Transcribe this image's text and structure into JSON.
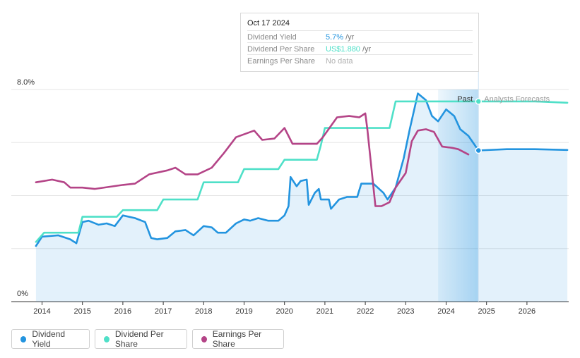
{
  "tooltip": {
    "date": "Oct 17 2024",
    "rows": [
      {
        "label": "Dividend Yield",
        "value": "5.7%",
        "unit": "/yr",
        "color": "#2394df"
      },
      {
        "label": "Dividend Per Share",
        "value": "US$1.880",
        "unit": "/yr",
        "color": "#4fe0c8"
      },
      {
        "label": "Earnings Per Share",
        "value": "No data",
        "unit": "",
        "color": "#b0b0b0"
      }
    ]
  },
  "regions": {
    "past": "Past",
    "forecast": "Analysts Forecasts"
  },
  "legend": [
    {
      "label": "Dividend Yield",
      "color": "#2394df"
    },
    {
      "label": "Dividend Per Share",
      "color": "#4fe0c8"
    },
    {
      "label": "Earnings Per Share",
      "color": "#b44487"
    }
  ],
  "chart_data": {
    "type": "line",
    "y_axis": {
      "min_label": "0%",
      "max_label": "8.0%",
      "ylim": [
        0,
        8
      ]
    },
    "x_axis": {
      "ticks": [
        "2014",
        "2015",
        "2016",
        "2017",
        "2018",
        "2019",
        "2020",
        "2021",
        "2022",
        "2023",
        "2024",
        "2025",
        "2026"
      ],
      "xlim": [
        2013.8,
        2027
      ]
    },
    "now": 2024.8,
    "highlight_start": 2023.8,
    "grid": true,
    "legend_position": "bottom-left",
    "series": [
      {
        "name": "Dividend Yield",
        "color": "#2394df",
        "area": true,
        "points": [
          [
            2013.85,
            2.1
          ],
          [
            2014.0,
            2.45
          ],
          [
            2014.4,
            2.5
          ],
          [
            2014.7,
            2.35
          ],
          [
            2014.85,
            2.2
          ],
          [
            2015.0,
            3.0
          ],
          [
            2015.15,
            3.05
          ],
          [
            2015.4,
            2.9
          ],
          [
            2015.6,
            2.95
          ],
          [
            2015.8,
            2.85
          ],
          [
            2016.0,
            3.25
          ],
          [
            2016.3,
            3.15
          ],
          [
            2016.55,
            3.0
          ],
          [
            2016.7,
            2.4
          ],
          [
            2016.85,
            2.35
          ],
          [
            2017.1,
            2.4
          ],
          [
            2017.3,
            2.65
          ],
          [
            2017.55,
            2.7
          ],
          [
            2017.75,
            2.5
          ],
          [
            2018.0,
            2.85
          ],
          [
            2018.2,
            2.8
          ],
          [
            2018.35,
            2.6
          ],
          [
            2018.55,
            2.6
          ],
          [
            2018.8,
            2.95
          ],
          [
            2019.0,
            3.1
          ],
          [
            2019.15,
            3.05
          ],
          [
            2019.35,
            3.15
          ],
          [
            2019.6,
            3.05
          ],
          [
            2019.85,
            3.05
          ],
          [
            2020.0,
            3.25
          ],
          [
            2020.1,
            3.6
          ],
          [
            2020.15,
            4.7
          ],
          [
            2020.3,
            4.35
          ],
          [
            2020.4,
            4.55
          ],
          [
            2020.55,
            4.6
          ],
          [
            2020.6,
            3.65
          ],
          [
            2020.75,
            4.1
          ],
          [
            2020.85,
            4.25
          ],
          [
            2020.9,
            3.85
          ],
          [
            2021.1,
            3.85
          ],
          [
            2021.15,
            3.5
          ],
          [
            2021.35,
            3.85
          ],
          [
            2021.55,
            3.95
          ],
          [
            2021.8,
            3.95
          ],
          [
            2021.9,
            4.45
          ],
          [
            2022.0,
            4.45
          ],
          [
            2022.2,
            4.45
          ],
          [
            2022.45,
            4.1
          ],
          [
            2022.55,
            3.85
          ],
          [
            2022.75,
            4.3
          ],
          [
            2022.95,
            5.4
          ],
          [
            2023.1,
            6.5
          ],
          [
            2023.3,
            7.85
          ],
          [
            2023.5,
            7.6
          ],
          [
            2023.65,
            7.0
          ],
          [
            2023.8,
            6.8
          ],
          [
            2024.0,
            7.25
          ],
          [
            2024.2,
            7.0
          ],
          [
            2024.35,
            6.5
          ],
          [
            2024.55,
            6.25
          ],
          [
            2024.8,
            5.7
          ],
          [
            2025.5,
            5.75
          ],
          [
            2026.2,
            5.75
          ],
          [
            2027.0,
            5.72
          ]
        ]
      },
      {
        "name": "Dividend Per Share",
        "color": "#4fe0c8",
        "area": false,
        "points": [
          [
            2013.85,
            2.25
          ],
          [
            2014.05,
            2.6
          ],
          [
            2014.9,
            2.6
          ],
          [
            2015.0,
            3.2
          ],
          [
            2015.85,
            3.2
          ],
          [
            2016.0,
            3.45
          ],
          [
            2016.85,
            3.45
          ],
          [
            2017.0,
            3.85
          ],
          [
            2017.85,
            3.85
          ],
          [
            2018.0,
            4.5
          ],
          [
            2018.85,
            4.5
          ],
          [
            2019.0,
            5.0
          ],
          [
            2019.85,
            5.0
          ],
          [
            2020.0,
            5.35
          ],
          [
            2020.8,
            5.35
          ],
          [
            2020.9,
            5.9
          ],
          [
            2021.0,
            6.55
          ],
          [
            2021.15,
            6.55
          ],
          [
            2022.6,
            6.55
          ],
          [
            2022.75,
            7.55
          ],
          [
            2023.7,
            7.55
          ],
          [
            2024.8,
            7.55
          ],
          [
            2025.5,
            7.55
          ],
          [
            2026.2,
            7.55
          ],
          [
            2027.0,
            7.5
          ]
        ]
      },
      {
        "name": "Earnings Per Share",
        "color": "#b44487",
        "area": false,
        "points": [
          [
            2013.85,
            4.5
          ],
          [
            2014.25,
            4.6
          ],
          [
            2014.55,
            4.5
          ],
          [
            2014.7,
            4.3
          ],
          [
            2015.0,
            4.3
          ],
          [
            2015.3,
            4.25
          ],
          [
            2016.0,
            4.4
          ],
          [
            2016.3,
            4.45
          ],
          [
            2016.65,
            4.8
          ],
          [
            2017.1,
            4.95
          ],
          [
            2017.3,
            5.05
          ],
          [
            2017.55,
            4.8
          ],
          [
            2017.85,
            4.8
          ],
          [
            2018.2,
            5.05
          ],
          [
            2018.5,
            5.6
          ],
          [
            2018.8,
            6.2
          ],
          [
            2019.25,
            6.45
          ],
          [
            2019.45,
            6.1
          ],
          [
            2019.75,
            6.15
          ],
          [
            2020.0,
            6.55
          ],
          [
            2020.2,
            5.95
          ],
          [
            2020.8,
            5.95
          ],
          [
            2020.95,
            6.2
          ],
          [
            2021.3,
            6.95
          ],
          [
            2021.6,
            7.0
          ],
          [
            2021.85,
            6.95
          ],
          [
            2022.0,
            7.1
          ],
          [
            2022.05,
            6.5
          ],
          [
            2022.25,
            3.6
          ],
          [
            2022.4,
            3.6
          ],
          [
            2022.6,
            3.75
          ],
          [
            2022.75,
            4.3
          ],
          [
            2023.0,
            4.85
          ],
          [
            2023.15,
            6.05
          ],
          [
            2023.3,
            6.45
          ],
          [
            2023.5,
            6.5
          ],
          [
            2023.7,
            6.4
          ],
          [
            2023.9,
            5.85
          ],
          [
            2024.15,
            5.8
          ],
          [
            2024.3,
            5.75
          ],
          [
            2024.55,
            5.55
          ]
        ]
      }
    ]
  }
}
